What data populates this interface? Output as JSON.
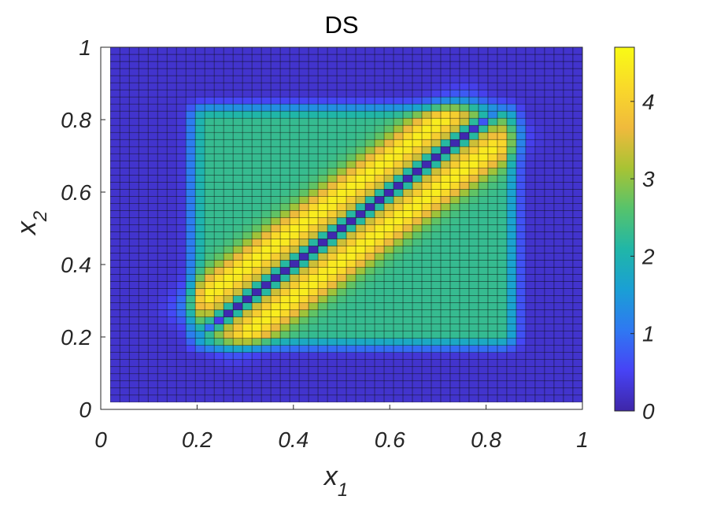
{
  "chart_data": {
    "type": "heatmap",
    "title": "DS",
    "xlabel": {
      "base": "x",
      "sub": "1"
    },
    "ylabel": {
      "base": "x",
      "sub": "2"
    },
    "xlim": [
      0,
      1
    ],
    "ylim": [
      0,
      1
    ],
    "xticks": [
      "0",
      "0.2",
      "0.4",
      "0.6",
      "0.8",
      "1"
    ],
    "yticks": [
      "0",
      "0.2",
      "0.4",
      "0.6",
      "0.8",
      "1"
    ],
    "colorbar": {
      "range": [
        0,
        4.7
      ],
      "ticks": [
        "0",
        "1",
        "2",
        "3",
        "4"
      ],
      "colormap": "parula",
      "stops": [
        "#3e26a8",
        "#4743f5",
        "#2f78f2",
        "#1a9fd5",
        "#20b6a8",
        "#56c36c",
        "#a8c334",
        "#f0ba3c",
        "#f9d92a",
        "#f9fb15"
      ]
    },
    "grid_resolution": 50,
    "grid_extent": [
      0.02,
      1.0
    ],
    "cell_gridlines": true,
    "field": {
      "description_values": "band_peak ~4.5 along 0.2<x1<0.8 offset 0.05 from diagonal, ~0 on diagonal, ~2.5 inside square [0.2,0.85]^2, ~0.2 outside",
      "square": [
        0.2,
        0.85
      ],
      "outside_value": 0.25,
      "inside_value": 2.3,
      "band_peak": 4.5,
      "band_offset": 0.065,
      "band_width": 0.045,
      "diagonal_value": 0.05,
      "diagonal_width": 0.012
    }
  }
}
